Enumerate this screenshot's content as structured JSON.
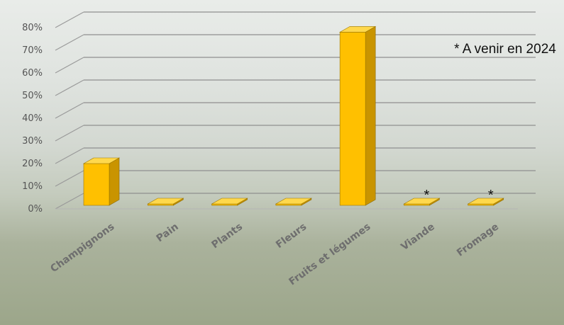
{
  "chart_data": {
    "type": "bar",
    "style": "3d",
    "categories": [
      "Champignons",
      "Pain",
      "Plants",
      "Fleurs",
      "Fruits et légumes",
      "Viande",
      "Fromage"
    ],
    "values": [
      20,
      1,
      1,
      1,
      78,
      0,
      0
    ],
    "markers": [
      "",
      "",
      "",
      "",
      "",
      "*",
      "*"
    ],
    "ylim": [
      0,
      80
    ],
    "yticks": [
      "0%",
      "10%",
      "20%",
      "30%",
      "40%",
      "50%",
      "60%",
      "70%",
      "80%"
    ],
    "annotation": "* A venir en 2024",
    "grid": true,
    "bar_color": "#FFC000",
    "bar_side_color": "#C99400",
    "bar_top_color": "#FFD84D"
  }
}
